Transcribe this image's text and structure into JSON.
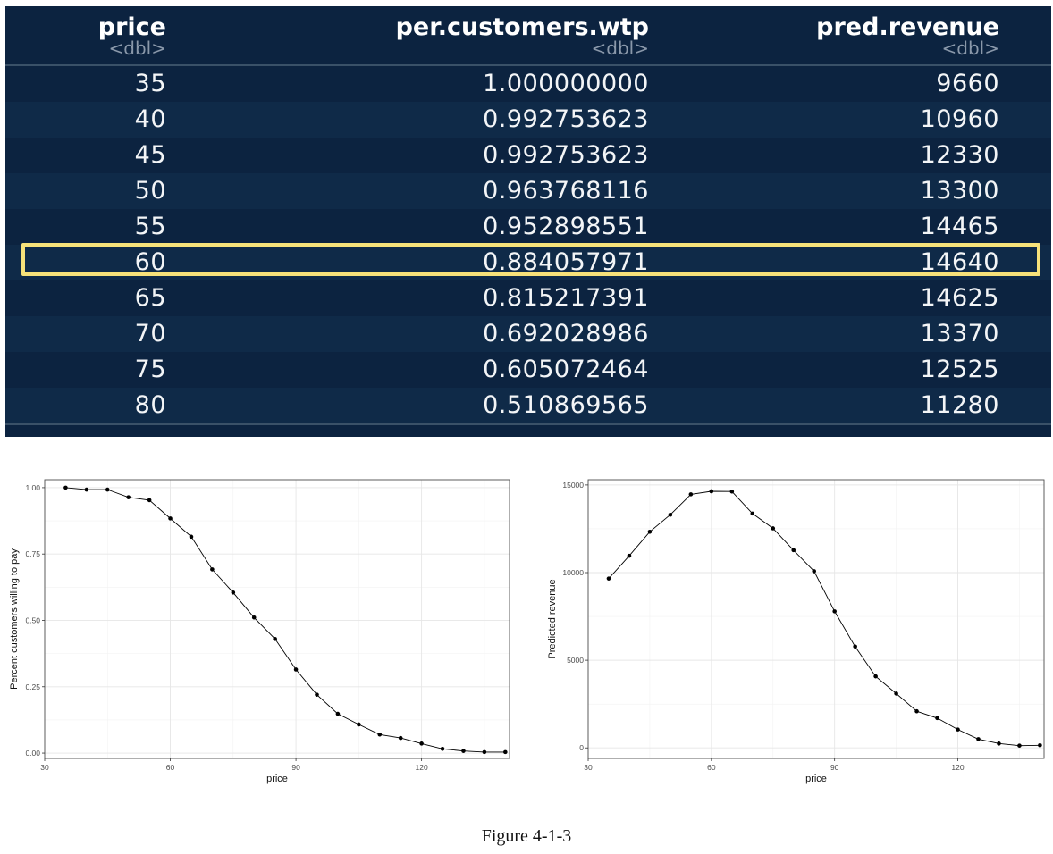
{
  "table": {
    "columns": [
      {
        "name": "price",
        "type": "<dbl>"
      },
      {
        "name": "per.customers.wtp",
        "type": "<dbl>"
      },
      {
        "name": "pred.revenue",
        "type": "<dbl>"
      }
    ],
    "rows": [
      [
        "35",
        "1.000000000",
        "9660"
      ],
      [
        "40",
        "0.992753623",
        "10960"
      ],
      [
        "45",
        "0.992753623",
        "12330"
      ],
      [
        "50",
        "0.963768116",
        "13300"
      ],
      [
        "55",
        "0.952898551",
        "14465"
      ],
      [
        "60",
        "0.884057971",
        "14640"
      ],
      [
        "65",
        "0.815217391",
        "14625"
      ],
      [
        "70",
        "0.692028986",
        "13370"
      ],
      [
        "75",
        "0.605072464",
        "12525"
      ],
      [
        "80",
        "0.510869565",
        "11280"
      ]
    ],
    "highlight_color": "#f7e27a",
    "background_color": "#0c2340"
  },
  "chart_data": [
    {
      "type": "line",
      "xlabel": "price",
      "ylabel": "Percent customers willing to pay",
      "xlim": [
        30,
        141
      ],
      "ylim": [
        -0.02,
        1.03
      ],
      "xticks": [
        30,
        60,
        90,
        120
      ],
      "yticks": [
        0.0,
        0.25,
        0.5,
        0.75,
        1.0
      ],
      "ytick_labels": [
        "0.00",
        "0.25",
        "0.50",
        "0.75",
        "1.00"
      ],
      "grid": true,
      "x": [
        35,
        40,
        45,
        50,
        55,
        60,
        65,
        70,
        75,
        80,
        85,
        90,
        95,
        100,
        105,
        110,
        115,
        120,
        125,
        130,
        135,
        140
      ],
      "y": [
        1.0,
        0.992753623,
        0.992753623,
        0.963768116,
        0.952898551,
        0.884057971,
        0.815217391,
        0.692028986,
        0.605072464,
        0.510869565,
        0.43,
        0.315,
        0.22,
        0.148,
        0.108,
        0.07,
        0.057,
        0.036,
        0.016,
        0.008,
        0.004,
        0.004
      ]
    },
    {
      "type": "line",
      "xlabel": "price",
      "ylabel": "Predicted revenue",
      "xlim": [
        30,
        141
      ],
      "ylim": [
        -600,
        15300
      ],
      "xticks": [
        30,
        60,
        90,
        120
      ],
      "yticks": [
        0,
        5000,
        10000,
        15000
      ],
      "ytick_labels": [
        "0",
        "5000",
        "10000",
        "15000"
      ],
      "grid": true,
      "x": [
        35,
        40,
        45,
        50,
        55,
        60,
        65,
        70,
        75,
        80,
        85,
        90,
        95,
        100,
        105,
        110,
        115,
        120,
        125,
        130,
        135,
        140
      ],
      "y": [
        9660,
        10960,
        12330,
        13300,
        14465,
        14640,
        14625,
        13370,
        12525,
        11280,
        10080,
        7790,
        5780,
        4080,
        3100,
        2090,
        1700,
        1050,
        500,
        250,
        130,
        150
      ]
    }
  ],
  "caption": "Figure 4-1-3"
}
